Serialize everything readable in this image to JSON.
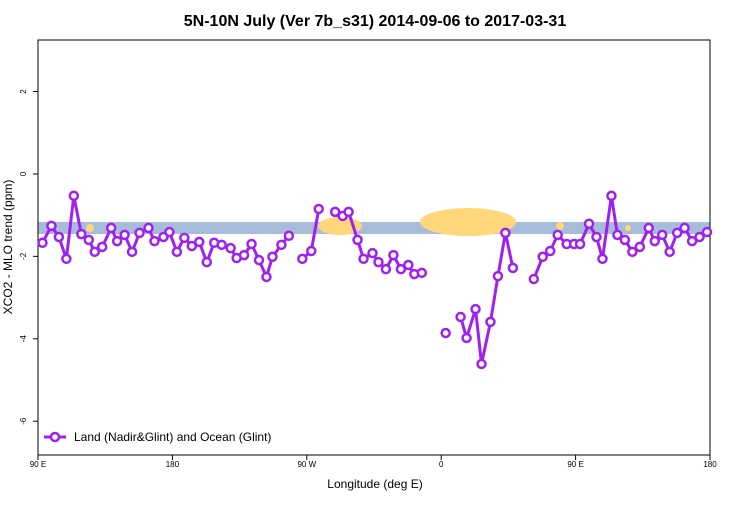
{
  "chart_data": {
    "type": "line",
    "title": "5N-10N July (Ver 7b_s31)   2014-09-06 to 2017-03-31",
    "x_label": "Longitude (deg E)",
    "y_label": "XCO2 - MLO trend (ppm)",
    "xlim": [
      90,
      540
    ],
    "xticks": [
      {
        "value": 90,
        "label": "90 E"
      },
      {
        "value": 180,
        "label": "180"
      },
      {
        "value": 270,
        "label": "90 W"
      },
      {
        "value": 360,
        "label": "0"
      },
      {
        "value": 450,
        "label": "90 E"
      },
      {
        "value": 540,
        "label": "180"
      }
    ],
    "ylim": [
      -6.82,
      3.25
    ],
    "yticks": [
      -6,
      -4,
      -2,
      0,
      2
    ],
    "legend": "bottom-left",
    "series": [
      {
        "name": "Land (Nadir&Glint) and Ocean (Glint)",
        "color": "#a020f0",
        "x": [
          93,
          99,
          104,
          109,
          114,
          119,
          124,
          128,
          133,
          139,
          143,
          148,
          153,
          158,
          164,
          168,
          174,
          178,
          183,
          188,
          193,
          198,
          203,
          208,
          213,
          219,
          223,
          228,
          233,
          238,
          243,
          247,
          253,
          258,
          262,
          267,
          273,
          278,
          283,
          289,
          294,
          298,
          304,
          308,
          314,
          318,
          323,
          328,
          333,
          338,
          342,
          347,
          355,
          363,
          367,
          373,
          377,
          383,
          387,
          393,
          398,
          403,
          408,
          414,
          422,
          428,
          433,
          438,
          444,
          449,
          453,
          459,
          464,
          468,
          474,
          478,
          483,
          488,
          493,
          499,
          503,
          508,
          513,
          518,
          523,
          528,
          533,
          538
        ],
        "values": [
          -1.67,
          -1.26,
          -1.53,
          -2.06,
          -0.53,
          -1.46,
          -1.6,
          -1.89,
          -1.77,
          -1.31,
          -1.63,
          -1.48,
          -1.89,
          -1.43,
          -1.31,
          -1.63,
          -1.53,
          -1.41,
          -1.89,
          -1.55,
          -1.75,
          -1.65,
          -2.14,
          -1.67,
          -1.72,
          -1.8,
          -2.04,
          -1.97,
          -1.7,
          -2.09,
          -2.5,
          -2.01,
          -1.72,
          -1.5,
          null,
          -2.06,
          -1.87,
          -0.85,
          null,
          -0.92,
          -1.02,
          -0.92,
          -1.6,
          -2.06,
          -1.92,
          -2.14,
          -2.31,
          -1.97,
          -2.31,
          -2.21,
          -2.43,
          -2.4,
          null,
          -3.86,
          null,
          -3.47,
          -3.98,
          -3.28,
          -4.61,
          -3.59,
          -2.48,
          -1.43,
          -2.28,
          null,
          -2.55,
          -2.01,
          -1.87,
          -1.48,
          -1.7,
          -1.7,
          -1.7,
          -1.21,
          -1.53,
          -2.06,
          -0.53,
          -1.48,
          -1.6,
          -1.89,
          -1.77,
          -1.31,
          -1.63,
          -1.48,
          -1.89,
          -1.43,
          -1.31,
          -1.63,
          -1.53,
          -1.41
        ]
      }
    ]
  }
}
